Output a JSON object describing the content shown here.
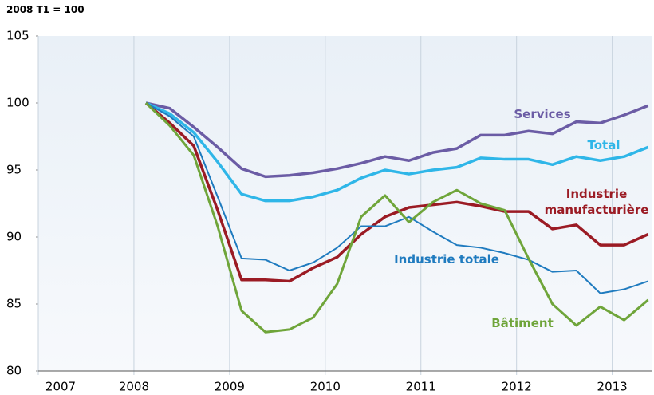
{
  "chart_data": {
    "type": "line",
    "y_label": "2008 T1 = 100",
    "xlim": [
      2007,
      2013.42
    ],
    "xticks": [
      2007,
      2008,
      2009,
      2010,
      2011,
      2012,
      2013
    ],
    "ylim": [
      80,
      105
    ],
    "yticks": [
      80,
      85,
      90,
      95,
      100,
      105
    ],
    "x": [
      2008.125,
      2008.375,
      2008.625,
      2008.875,
      2009.125,
      2009.375,
      2009.625,
      2009.875,
      2010.125,
      2010.375,
      2010.625,
      2010.875,
      2011.125,
      2011.375,
      2011.625,
      2011.875,
      2012.125,
      2012.375,
      2012.625,
      2012.875,
      2013.125,
      2013.375
    ],
    "series": [
      {
        "name": "Services",
        "color": "#6b5ca5",
        "line_width": 3.5,
        "values": [
          100,
          99.6,
          98.2,
          96.7,
          95.1,
          94.5,
          94.6,
          94.8,
          95.1,
          95.5,
          96.0,
          95.7,
          96.3,
          96.6,
          97.6,
          97.6,
          97.9,
          97.7,
          98.6,
          98.5,
          99.1,
          99.8
        ]
      },
      {
        "name": "Total",
        "color": "#2fb6e8",
        "line_width": 3.5,
        "values": [
          100,
          99.2,
          97.8,
          95.6,
          93.2,
          92.7,
          92.7,
          93.0,
          93.5,
          94.4,
          95.0,
          94.7,
          95.0,
          95.2,
          95.9,
          95.8,
          95.8,
          95.4,
          96.0,
          95.7,
          96.0,
          96.7
        ]
      },
      {
        "name": "Industrie manufacturière",
        "color": "#9b1b24",
        "line_width": 3.5,
        "values": [
          100,
          98.5,
          96.8,
          92.0,
          86.8,
          86.8,
          86.7,
          87.7,
          88.5,
          90.2,
          91.5,
          92.2,
          92.4,
          92.6,
          92.3,
          91.9,
          91.9,
          90.6,
          90.9,
          89.4,
          89.4,
          90.2
        ]
      },
      {
        "name": "Industrie totale",
        "color": "#1f7bbf",
        "line_width": 2,
        "values": [
          100,
          99.0,
          97.5,
          93.0,
          88.4,
          88.3,
          87.5,
          88.1,
          89.2,
          90.8,
          90.8,
          91.5,
          90.4,
          89.4,
          89.2,
          88.8,
          88.3,
          87.4,
          87.5,
          85.8,
          86.1,
          86.7
        ]
      },
      {
        "name": "Bâtiment",
        "color": "#6fa53a",
        "line_width": 3,
        "values": [
          100,
          98.3,
          96.1,
          90.8,
          84.5,
          82.9,
          83.1,
          84.0,
          86.5,
          91.5,
          93.1,
          91.1,
          92.6,
          93.5,
          92.5,
          92.0,
          88.4,
          85.0,
          83.4,
          84.8,
          83.8,
          85.3
        ]
      }
    ]
  }
}
